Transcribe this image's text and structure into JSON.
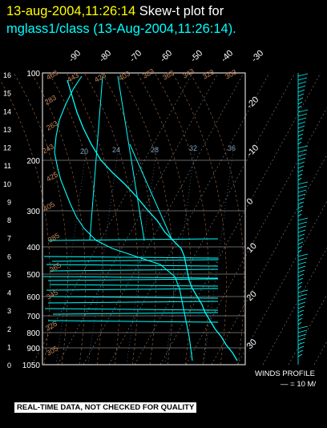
{
  "header": {
    "line1_date": "13-aug-2004,11:26:14",
    "line1_text": "Skew-t plot for",
    "line2_text": "mglass1/class (13-Aug-2004,11:26:14)."
  },
  "banner": "REAL-TIME DATA, NOT CHECKED FOR QUALITY",
  "winds": {
    "label": "WINDS PROFILE",
    "scale": "— = 10 M/"
  },
  "colors": {
    "background": "#000000",
    "title_date": "#ffff00",
    "trace": "#00ffff",
    "isotherm_labels": "#ffffff",
    "adiabat_labels": "#c8875a",
    "mixing_labels": "#7f9fbf",
    "grid": "#ffffff"
  },
  "chart_data": {
    "type": "skew-t",
    "y_axis_pressure_hpa": [
      "100",
      "200",
      "300",
      "400",
      "500",
      "600",
      "700",
      "800",
      "900",
      "1050"
    ],
    "height_km_labels": [
      "16",
      "15",
      "14",
      "13",
      "12",
      "11",
      "10",
      "9",
      "8",
      "7",
      "6",
      "5",
      "4",
      "3",
      "2",
      "1",
      "0"
    ],
    "isotherm_labels_top": [
      "-90",
      "-80",
      "-70",
      "-60",
      "-50",
      "-40",
      "-30"
    ],
    "isotherm_labels_right": [
      "-20",
      "-10",
      "0",
      "10",
      "20",
      "30"
    ],
    "dry_adiabat_labels": [
      "463",
      "443",
      "423",
      "403",
      "383",
      "363",
      "343",
      "323",
      "303",
      "283",
      "263",
      "243",
      "425",
      "405",
      "385",
      "365",
      "345",
      "325",
      "305",
      "285",
      "265"
    ],
    "mixing_ratio_labels": [
      "20",
      "24",
      "28",
      "32",
      "36"
    ],
    "trace": "temperature/dewpoint sounding (cyan)"
  }
}
